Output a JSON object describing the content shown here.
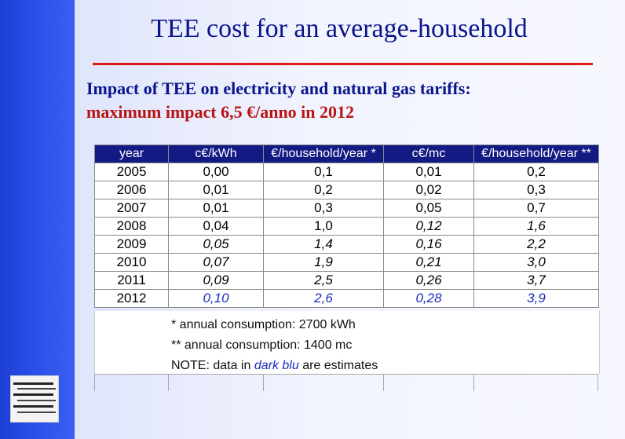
{
  "title": "TEE cost for an average-household",
  "subtitle": {
    "line1": "Impact of TEE on electricity and natural gas tariffs:",
    "line2": "maximum impact 6,5 €/anno in 2012"
  },
  "table": {
    "headers": [
      "year",
      "c€/kWh",
      "€/household/year *",
      "c€/mc",
      "€/household/year **"
    ],
    "rows": [
      [
        "2005",
        "0,00",
        "0,1",
        "0,01",
        "0,2"
      ],
      [
        "2006",
        "0,01",
        "0,2",
        "0,02",
        "0,3"
      ],
      [
        "2007",
        "0,01",
        "0,3",
        "0,05",
        "0,7"
      ],
      [
        "2008",
        "0,04",
        "1,0",
        "0,12",
        "1,6"
      ],
      [
        "2009",
        "0,05",
        "1,4",
        "0,16",
        "2,2"
      ],
      [
        "2010",
        "0,07",
        "1,9",
        "0,21",
        "3,0"
      ],
      [
        "2011",
        "0,09",
        "2,5",
        "0,26",
        "3,7"
      ],
      [
        "2012",
        "0,10",
        "2,6",
        "0,28",
        "3,9"
      ]
    ]
  },
  "notes": {
    "note1": "* annual consumption: 2700 kWh",
    "note2": "** annual consumption: 1400 mc",
    "note3_prefix": "NOTE: data in",
    "note3_highlight": "dark blu",
    "note3_suffix": "are estimates"
  },
  "colors": {
    "title": "#0a148c",
    "rule": "#e01a14",
    "subtitle_highlight": "#b81414",
    "header_bg": "#131a84",
    "estimate_text": "#1b2bc0",
    "sidebar": "#2d52ea"
  }
}
